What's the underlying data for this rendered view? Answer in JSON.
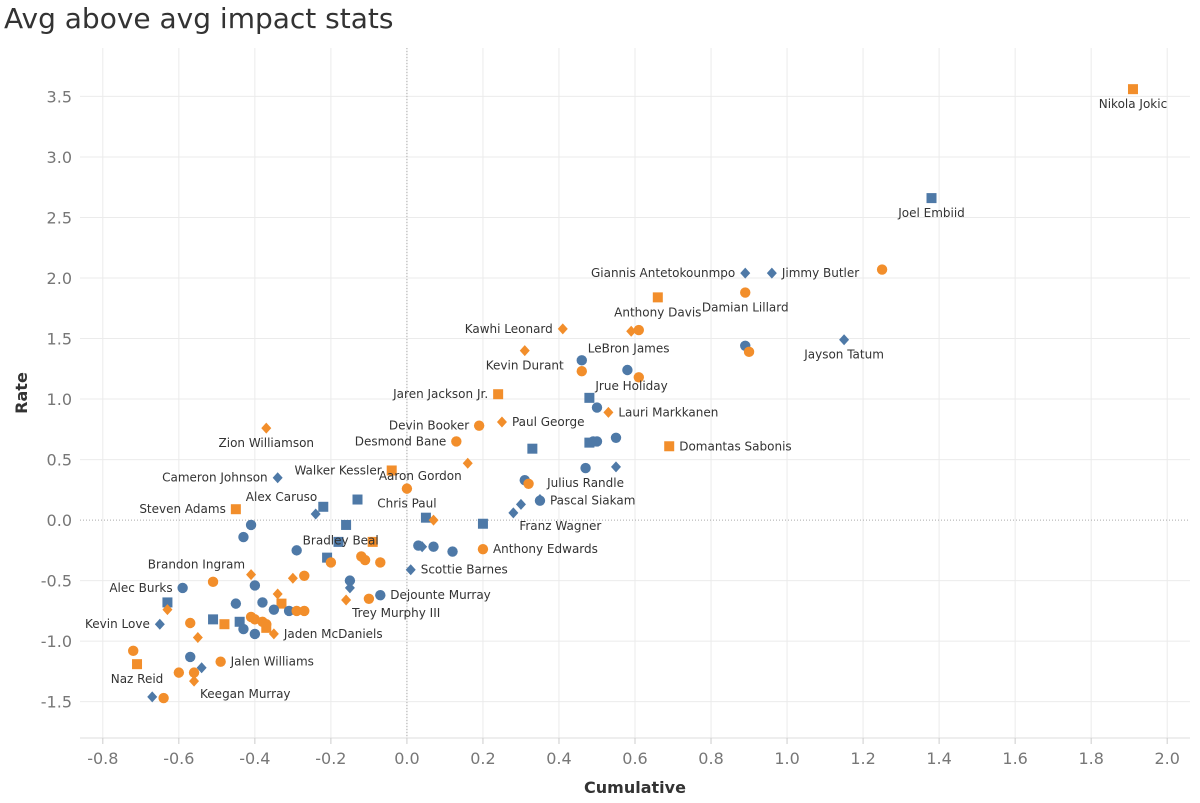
{
  "title": "Avg above avg impact stats",
  "colors": {
    "blue": "#4e79a7",
    "orange": "#f28e2b",
    "grid": "#ebebeb",
    "zero": "#aaaaaa"
  },
  "chart_data": {
    "type": "scatter",
    "title": "Avg above avg impact stats",
    "xlabel": "Cumulative",
    "ylabel": "Rate",
    "xlim": [
      -0.86,
      2.06
    ],
    "ylim": [
      -1.8,
      3.9
    ],
    "xticks": [
      -0.8,
      -0.6,
      -0.4,
      -0.2,
      0.0,
      0.2,
      0.4,
      0.6,
      0.8,
      1.0,
      1.2,
      1.4,
      1.6,
      1.8,
      2.0
    ],
    "yticks": [
      -1.5,
      -1.0,
      -0.5,
      0.0,
      0.5,
      1.0,
      1.5,
      2.0,
      2.5,
      3.0,
      3.5
    ],
    "shapes_legend": [
      "square",
      "circle",
      "diamond"
    ],
    "points": [
      {
        "x": 1.91,
        "y": 3.56,
        "c": "orange",
        "s": "square",
        "label": "Nikola Jokic",
        "lp": "below"
      },
      {
        "x": 1.38,
        "y": 2.66,
        "c": "blue",
        "s": "square",
        "label": "Joel Embiid",
        "lp": "below"
      },
      {
        "x": 1.25,
        "y": 2.07,
        "c": "orange",
        "s": "circle"
      },
      {
        "x": 0.96,
        "y": 2.04,
        "c": "blue",
        "s": "diamond",
        "label": "Jimmy Butler",
        "lp": "right"
      },
      {
        "x": 0.89,
        "y": 2.04,
        "c": "blue",
        "s": "diamond",
        "label": "Giannis Antetokounmpo",
        "lp": "left"
      },
      {
        "x": 0.89,
        "y": 1.88,
        "c": "orange",
        "s": "circle",
        "label": "Damian Lillard",
        "lp": "below"
      },
      {
        "x": 0.66,
        "y": 1.84,
        "c": "orange",
        "s": "square",
        "label": "Anthony Davis",
        "lp": "below"
      },
      {
        "x": 1.15,
        "y": 1.49,
        "c": "blue",
        "s": "diamond",
        "label": "Jayson Tatum",
        "lp": "below"
      },
      {
        "x": 0.41,
        "y": 1.58,
        "c": "orange",
        "s": "diamond",
        "label": "Kawhi Leonard",
        "lp": "left"
      },
      {
        "x": 0.61,
        "y": 1.57,
        "c": "orange",
        "s": "circle"
      },
      {
        "x": 0.59,
        "y": 1.56,
        "c": "orange",
        "s": "diamond"
      },
      {
        "x": 0.89,
        "y": 1.44,
        "c": "blue",
        "s": "circle"
      },
      {
        "x": 0.9,
        "y": 1.39,
        "c": "orange",
        "s": "circle"
      },
      {
        "x": 0.31,
        "y": 1.4,
        "c": "orange",
        "s": "diamond",
        "label": "Kevin Durant",
        "lp": "below"
      },
      {
        "x": 0.46,
        "y": 1.32,
        "c": "blue",
        "s": "circle",
        "label": "LeBron James",
        "lp": "above-right"
      },
      {
        "x": 0.58,
        "y": 1.24,
        "c": "blue",
        "s": "circle"
      },
      {
        "x": 0.46,
        "y": 1.23,
        "c": "orange",
        "s": "circle"
      },
      {
        "x": 0.61,
        "y": 1.18,
        "c": "orange",
        "s": "circle"
      },
      {
        "x": 0.24,
        "y": 1.04,
        "c": "orange",
        "s": "square",
        "label": "Jaren Jackson Jr.",
        "lp": "left"
      },
      {
        "x": 0.48,
        "y": 1.01,
        "c": "blue",
        "s": "square",
        "label": "Jrue Holiday",
        "lp": "above-right"
      },
      {
        "x": 0.5,
        "y": 0.93,
        "c": "blue",
        "s": "circle"
      },
      {
        "x": 0.53,
        "y": 0.89,
        "c": "orange",
        "s": "diamond",
        "label": "Lauri Markkanen",
        "lp": "right"
      },
      {
        "x": 0.25,
        "y": 0.81,
        "c": "orange",
        "s": "diamond",
        "label": "Paul George",
        "lp": "right"
      },
      {
        "x": 0.19,
        "y": 0.78,
        "c": "orange",
        "s": "circle",
        "label": "Devin Booker",
        "lp": "left"
      },
      {
        "x": -0.37,
        "y": 0.76,
        "c": "orange",
        "s": "diamond",
        "label": "Zion Williamson",
        "lp": "below"
      },
      {
        "x": 0.55,
        "y": 0.68,
        "c": "blue",
        "s": "circle"
      },
      {
        "x": 0.48,
        "y": 0.64,
        "c": "blue",
        "s": "square"
      },
      {
        "x": 0.49,
        "y": 0.65,
        "c": "blue",
        "s": "circle"
      },
      {
        "x": 0.5,
        "y": 0.65,
        "c": "blue",
        "s": "circle"
      },
      {
        "x": 0.69,
        "y": 0.61,
        "c": "orange",
        "s": "square",
        "label": "Domantas Sabonis",
        "lp": "right"
      },
      {
        "x": 0.13,
        "y": 0.65,
        "c": "orange",
        "s": "circle",
        "label": "Desmond Bane",
        "lp": "left"
      },
      {
        "x": 0.33,
        "y": 0.59,
        "c": "blue",
        "s": "square"
      },
      {
        "x": 0.16,
        "y": 0.47,
        "c": "orange",
        "s": "diamond",
        "label": "Aaron Gordon",
        "lp": "below-left"
      },
      {
        "x": 0.47,
        "y": 0.43,
        "c": "blue",
        "s": "circle",
        "label": "Julius Randle",
        "lp": "below"
      },
      {
        "x": 0.55,
        "y": 0.44,
        "c": "blue",
        "s": "diamond"
      },
      {
        "x": -0.04,
        "y": 0.41,
        "c": "orange",
        "s": "square",
        "label": "Walker Kessler",
        "lp": "left"
      },
      {
        "x": -0.34,
        "y": 0.35,
        "c": "blue",
        "s": "diamond",
        "label": "Cameron Johnson",
        "lp": "left"
      },
      {
        "x": 0.31,
        "y": 0.33,
        "c": "blue",
        "s": "circle"
      },
      {
        "x": 0.32,
        "y": 0.3,
        "c": "orange",
        "s": "circle"
      },
      {
        "x": 0.0,
        "y": 0.26,
        "c": "orange",
        "s": "circle",
        "label": "Chris Paul",
        "lp": "below"
      },
      {
        "x": 0.35,
        "y": 0.16,
        "c": "blue",
        "s": "circle",
        "label": "Pascal Siakam",
        "lp": "right"
      },
      {
        "x": 0.35,
        "y": 0.17,
        "c": "blue",
        "s": "diamond"
      },
      {
        "x": 0.3,
        "y": 0.13,
        "c": "blue",
        "s": "diamond"
      },
      {
        "x": -0.13,
        "y": 0.17,
        "c": "blue",
        "s": "square"
      },
      {
        "x": -0.22,
        "y": 0.11,
        "c": "blue",
        "s": "square",
        "label": "Alex Caruso",
        "lp": "left-above"
      },
      {
        "x": -0.45,
        "y": 0.09,
        "c": "orange",
        "s": "square",
        "label": "Steven Adams",
        "lp": "left"
      },
      {
        "x": -0.24,
        "y": 0.05,
        "c": "blue",
        "s": "diamond"
      },
      {
        "x": 0.28,
        "y": 0.06,
        "c": "blue",
        "s": "diamond",
        "label": "Franz Wagner",
        "lp": "below-right"
      },
      {
        "x": 0.05,
        "y": 0.02,
        "c": "blue",
        "s": "square"
      },
      {
        "x": 0.07,
        "y": 0.0,
        "c": "orange",
        "s": "diamond"
      },
      {
        "x": 0.2,
        "y": -0.03,
        "c": "blue",
        "s": "square"
      },
      {
        "x": -0.41,
        "y": -0.04,
        "c": "blue",
        "s": "circle"
      },
      {
        "x": -0.16,
        "y": -0.04,
        "c": "blue",
        "s": "square"
      },
      {
        "x": -0.43,
        "y": -0.14,
        "c": "blue",
        "s": "circle"
      },
      {
        "x": -0.29,
        "y": -0.25,
        "c": "blue",
        "s": "circle",
        "label": "Bradley Beal",
        "lp": "right-above"
      },
      {
        "x": -0.18,
        "y": -0.18,
        "c": "blue",
        "s": "square"
      },
      {
        "x": -0.09,
        "y": -0.18,
        "c": "orange",
        "s": "square"
      },
      {
        "x": 0.03,
        "y": -0.21,
        "c": "blue",
        "s": "circle"
      },
      {
        "x": 0.04,
        "y": -0.22,
        "c": "blue",
        "s": "diamond"
      },
      {
        "x": 0.07,
        "y": -0.22,
        "c": "blue",
        "s": "circle"
      },
      {
        "x": 0.12,
        "y": -0.26,
        "c": "blue",
        "s": "circle"
      },
      {
        "x": 0.2,
        "y": -0.24,
        "c": "orange",
        "s": "circle",
        "label": "Anthony Edwards",
        "lp": "right"
      },
      {
        "x": -0.21,
        "y": -0.31,
        "c": "blue",
        "s": "square"
      },
      {
        "x": -0.2,
        "y": -0.35,
        "c": "orange",
        "s": "circle"
      },
      {
        "x": -0.12,
        "y": -0.3,
        "c": "orange",
        "s": "circle"
      },
      {
        "x": -0.11,
        "y": -0.33,
        "c": "orange",
        "s": "circle"
      },
      {
        "x": -0.07,
        "y": -0.35,
        "c": "orange",
        "s": "circle"
      },
      {
        "x": 0.01,
        "y": -0.41,
        "c": "blue",
        "s": "diamond",
        "label": "Scottie Barnes",
        "lp": "right"
      },
      {
        "x": -0.41,
        "y": -0.45,
        "c": "orange",
        "s": "diamond",
        "label": "Brandon Ingram",
        "lp": "left-above"
      },
      {
        "x": -0.3,
        "y": -0.48,
        "c": "orange",
        "s": "diamond"
      },
      {
        "x": -0.27,
        "y": -0.46,
        "c": "orange",
        "s": "circle"
      },
      {
        "x": -0.15,
        "y": -0.5,
        "c": "blue",
        "s": "circle"
      },
      {
        "x": -0.15,
        "y": -0.56,
        "c": "blue",
        "s": "diamond"
      },
      {
        "x": -0.51,
        "y": -0.51,
        "c": "orange",
        "s": "circle"
      },
      {
        "x": -0.59,
        "y": -0.56,
        "c": "blue",
        "s": "circle",
        "label": "Alec Burks",
        "lp": "left"
      },
      {
        "x": -0.4,
        "y": -0.54,
        "c": "blue",
        "s": "circle"
      },
      {
        "x": -0.07,
        "y": -0.62,
        "c": "blue",
        "s": "circle",
        "label": "Dejounte Murray",
        "lp": "right"
      },
      {
        "x": -0.1,
        "y": -0.65,
        "c": "orange",
        "s": "circle"
      },
      {
        "x": -0.16,
        "y": -0.66,
        "c": "orange",
        "s": "diamond",
        "label": "Trey Murphy III",
        "lp": "below-right"
      },
      {
        "x": -0.34,
        "y": -0.61,
        "c": "orange",
        "s": "diamond"
      },
      {
        "x": -0.63,
        "y": -0.68,
        "c": "blue",
        "s": "square"
      },
      {
        "x": -0.63,
        "y": -0.74,
        "c": "orange",
        "s": "diamond"
      },
      {
        "x": -0.45,
        "y": -0.69,
        "c": "blue",
        "s": "circle"
      },
      {
        "x": -0.38,
        "y": -0.68,
        "c": "blue",
        "s": "circle"
      },
      {
        "x": -0.33,
        "y": -0.69,
        "c": "orange",
        "s": "square"
      },
      {
        "x": -0.35,
        "y": -0.74,
        "c": "blue",
        "s": "circle"
      },
      {
        "x": -0.31,
        "y": -0.75,
        "c": "blue",
        "s": "circle"
      },
      {
        "x": -0.29,
        "y": -0.75,
        "c": "orange",
        "s": "circle"
      },
      {
        "x": -0.27,
        "y": -0.75,
        "c": "orange",
        "s": "circle"
      },
      {
        "x": -0.51,
        "y": -0.82,
        "c": "blue",
        "s": "square"
      },
      {
        "x": -0.41,
        "y": -0.8,
        "c": "orange",
        "s": "circle"
      },
      {
        "x": -0.4,
        "y": -0.82,
        "c": "orange",
        "s": "circle"
      },
      {
        "x": -0.38,
        "y": -0.84,
        "c": "orange",
        "s": "circle"
      },
      {
        "x": -0.44,
        "y": -0.84,
        "c": "blue",
        "s": "square"
      },
      {
        "x": -0.43,
        "y": -0.9,
        "c": "blue",
        "s": "circle"
      },
      {
        "x": -0.37,
        "y": -0.86,
        "c": "orange",
        "s": "circle"
      },
      {
        "x": -0.37,
        "y": -0.89,
        "c": "orange",
        "s": "square"
      },
      {
        "x": -0.48,
        "y": -0.86,
        "c": "orange",
        "s": "square"
      },
      {
        "x": -0.57,
        "y": -0.85,
        "c": "orange",
        "s": "circle"
      },
      {
        "x": -0.65,
        "y": -0.86,
        "c": "blue",
        "s": "diamond",
        "label": "Kevin Love",
        "lp": "left"
      },
      {
        "x": -0.4,
        "y": -0.94,
        "c": "blue",
        "s": "circle"
      },
      {
        "x": -0.35,
        "y": -0.94,
        "c": "orange",
        "s": "diamond",
        "label": "Jaden McDaniels",
        "lp": "right"
      },
      {
        "x": -0.55,
        "y": -0.97,
        "c": "orange",
        "s": "diamond"
      },
      {
        "x": -0.72,
        "y": -1.08,
        "c": "orange",
        "s": "circle"
      },
      {
        "x": -0.71,
        "y": -1.19,
        "c": "orange",
        "s": "square",
        "label": "Naz Reid",
        "lp": "below"
      },
      {
        "x": -0.57,
        "y": -1.13,
        "c": "blue",
        "s": "circle"
      },
      {
        "x": -0.49,
        "y": -1.17,
        "c": "orange",
        "s": "circle",
        "label": "Jalen Williams",
        "lp": "right"
      },
      {
        "x": -0.54,
        "y": -1.22,
        "c": "blue",
        "s": "diamond"
      },
      {
        "x": -0.6,
        "y": -1.26,
        "c": "orange",
        "s": "circle"
      },
      {
        "x": -0.56,
        "y": -1.26,
        "c": "orange",
        "s": "circle"
      },
      {
        "x": -0.56,
        "y": -1.33,
        "c": "orange",
        "s": "diamond",
        "label": "Keegan Murray",
        "lp": "below-right"
      },
      {
        "x": -0.67,
        "y": -1.46,
        "c": "blue",
        "s": "diamond"
      },
      {
        "x": -0.64,
        "y": -1.47,
        "c": "orange",
        "s": "circle"
      }
    ]
  }
}
